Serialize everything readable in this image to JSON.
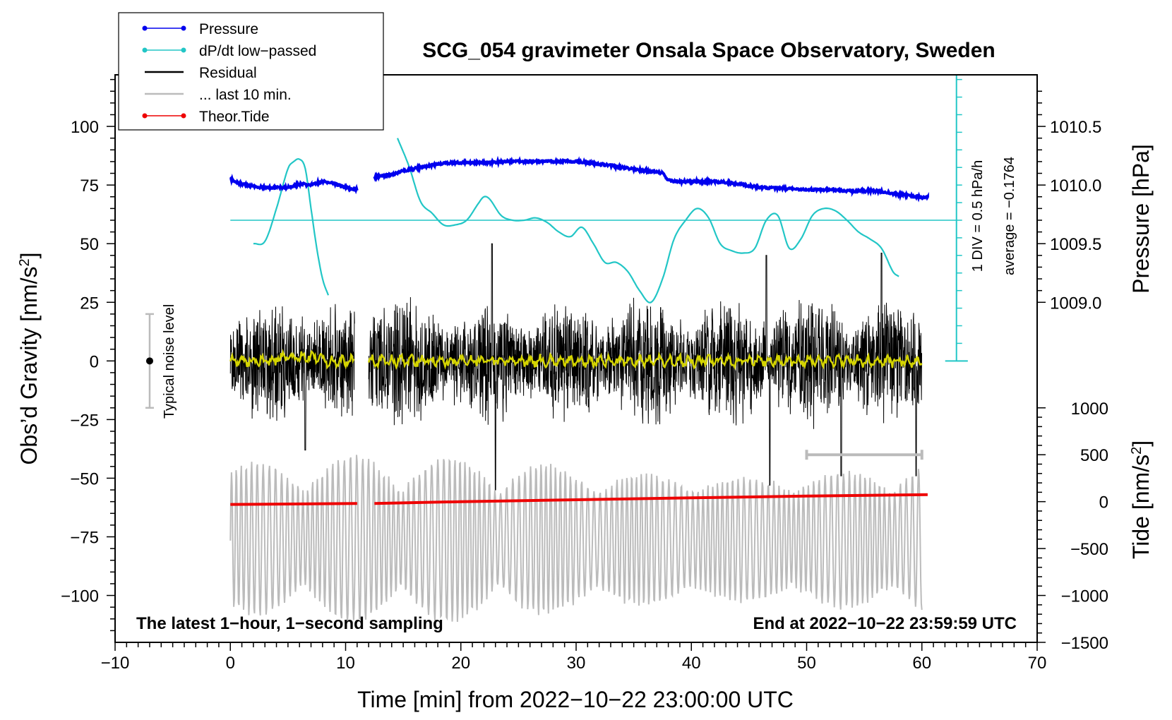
{
  "chart_data": {
    "type": "line",
    "title": "SCG_054 gravimeter Onsala Space Observatory, Sweden",
    "xlabel": "Time [min] from 2022−10−22 23:00:00 UTC",
    "ylabel_left": "Obs’d Gravity [nm/s²]",
    "ylabel_left_base": "Obs’d Gravity [nm/s",
    "ylabel_left_sup": "2",
    "ylabel_left_close": "]",
    "ylabel_right_pressure": "Pressure [hPa]",
    "ylabel_right_tide": "Tide [nm/s²]",
    "ylabel_right_tide_base": "Tide [nm/s",
    "ylabel_right_tide_sup": "2",
    "ylabel_right_tide_close": "]",
    "xlim": [
      -10,
      70
    ],
    "ylim": [
      -120,
      122
    ],
    "x_ticks": [
      -10,
      0,
      10,
      20,
      30,
      40,
      50,
      60,
      70
    ],
    "x_tick_labels": [
      "−10",
      "0",
      "10",
      "20",
      "30",
      "40",
      "50",
      "60",
      "70"
    ],
    "y_ticks": [
      100,
      75,
      50,
      25,
      0,
      -25,
      -50,
      -75,
      -100
    ],
    "y_tick_labels": [
      "100",
      "75",
      "50",
      "25",
      "0",
      "−25",
      "−50",
      "−75",
      "−100"
    ],
    "pressure_axis": {
      "ticks": [
        1010.5,
        1010.0,
        1009.5,
        1009.0
      ],
      "tick_labels": [
        "1010.5",
        "1010.0",
        "1009.5",
        "1009.0"
      ],
      "mapping": {
        "hpa": [
          1009.0,
          1010.5
        ],
        "gravity": [
          25,
          100
        ]
      }
    },
    "tide_axis": {
      "ticks": [
        1000,
        500,
        0,
        -500,
        -1000,
        -1500
      ],
      "tick_labels": [
        "1000",
        "500",
        "0",
        "−500",
        "−1000",
        "−1500"
      ],
      "mapping": {
        "tide": [
          -1500,
          1000
        ],
        "gravity": [
          -120,
          -20
        ]
      }
    },
    "legend": [
      {
        "label": "Pressure",
        "color": "#0000ee",
        "marker": true
      },
      {
        "label": "dP/dt low−passed",
        "color": "#22c6c6",
        "marker": true
      },
      {
        "label": "Residual",
        "color": "#000000",
        "marker": false
      },
      {
        "label": "... last 10 min.",
        "color": "#bbbbbb",
        "marker": false
      },
      {
        "label": "Theor.Tide",
        "color": "#ee0000",
        "marker": true
      }
    ],
    "annotations": {
      "noise": "Typical noise level",
      "div": "1 DIV = 0.5 hPa/h",
      "average": "average = −0.1764",
      "bottom_left": "The latest 1−hour, 1−second sampling",
      "bottom_right": "End at 2022−10−22 23:59:59 UTC"
    },
    "noise_bar": {
      "x": -7,
      "low": -20,
      "high": 20,
      "center": 0
    },
    "dpdt_scale_bar": {
      "x": 63,
      "low": 0,
      "high": 122,
      "baseline_gravity": 60
    },
    "last10_range_bar": {
      "x_start": 50,
      "x_end": 60,
      "tide": 500
    },
    "pressure_series": {
      "color": "#0000ee",
      "segments": [
        {
          "x": [
            0,
            1,
            2,
            3,
            4,
            5,
            6,
            7,
            8,
            9,
            10,
            11
          ],
          "y": [
            1010.05,
            1010.01,
            1009.99,
            1009.98,
            1009.98,
            1009.98,
            1010.01,
            1010.0,
            1010.03,
            1010.01,
            1009.98,
            1009.96
          ]
        },
        {
          "x": [
            12.5,
            14,
            15,
            16,
            17,
            18,
            19,
            20,
            22,
            24,
            26,
            28,
            30,
            32,
            34,
            36,
            37.5,
            38,
            40,
            42,
            44,
            46,
            48,
            50,
            52,
            54,
            56,
            58,
            60.5
          ],
          "y": [
            1010.07,
            1010.09,
            1010.12,
            1010.14,
            1010.16,
            1010.18,
            1010.19,
            1010.19,
            1010.19,
            1010.2,
            1010.2,
            1010.2,
            1010.2,
            1010.18,
            1010.15,
            1010.12,
            1010.1,
            1010.04,
            1010.03,
            1010.03,
            1010.01,
            1009.98,
            1009.97,
            1009.96,
            1009.96,
            1009.95,
            1009.95,
            1009.92,
            1009.89
          ]
        }
      ]
    },
    "dpdt_series": {
      "color": "#22c6c6",
      "segments": [
        {
          "x": [
            2,
            3,
            4,
            5,
            5.5,
            6,
            6.5,
            7,
            7.5,
            8,
            8.5
          ],
          "y": [
            50,
            51,
            65,
            82,
            85,
            86,
            82,
            65,
            48,
            35,
            28
          ]
        },
        {
          "x": [
            14.5,
            15.5,
            16.5,
            17.5,
            18.5,
            19.5,
            20.5,
            21.5,
            22,
            22.5,
            23.5,
            24.5,
            25.5,
            26.5,
            27.5,
            28.5,
            29.5,
            30.5,
            31.5,
            32.5,
            33.5,
            34.5,
            35.5,
            36.5,
            37.5,
            38.5,
            39.5,
            40.5,
            41.5,
            42.5,
            43.5,
            44.5,
            45.5,
            46.5,
            47.5,
            48.5,
            49.5,
            50.5,
            51.5,
            52.5,
            53.5,
            54.5,
            55.5,
            56.5,
            57.5,
            58
          ],
          "y": [
            95,
            83,
            68,
            63,
            58,
            58,
            60,
            67,
            70,
            69,
            62,
            60,
            60,
            61,
            59,
            55,
            53,
            57,
            50,
            42,
            42,
            38,
            30,
            25,
            35,
            52,
            60,
            65,
            61,
            50,
            47,
            46,
            48,
            60,
            62,
            48,
            52,
            62,
            65,
            64,
            60,
            55,
            52,
            48,
            38,
            36
          ]
        }
      ]
    },
    "residual_series": {
      "color": "#000000",
      "segments": [
        {
          "x_start": 0,
          "x_end": 10.8
        },
        {
          "x_start": 12,
          "x_end": 60
        }
      ],
      "typical_amplitude": 25,
      "peaks": [
        {
          "x": 6.5,
          "y": -38
        },
        {
          "x": 22.7,
          "y": 50
        },
        {
          "x": 23,
          "y": -55
        },
        {
          "x": 46.5,
          "y": 45
        },
        {
          "x": 46.8,
          "y": -53
        },
        {
          "x": 53,
          "y": -49
        },
        {
          "x": 56.5,
          "y": 46
        },
        {
          "x": 59.5,
          "y": -49
        }
      ]
    },
    "residual_smooth": {
      "color": "#d4d400",
      "amplitude": 2.5
    },
    "last10_series": {
      "color": "#bbbbbb",
      "x_start": 0,
      "x_end": 60,
      "center_tide": -400,
      "amplitude_tide": 900
    },
    "tide_series": {
      "color": "#ee0000",
      "segments": [
        {
          "x": [
            0,
            11
          ],
          "tide": [
            -30,
            -20
          ]
        },
        {
          "x": [
            12.5,
            20,
            30,
            40,
            50,
            60.5
          ],
          "tide": [
            -20,
            0,
            20,
            40,
            60,
            75
          ]
        }
      ]
    }
  }
}
